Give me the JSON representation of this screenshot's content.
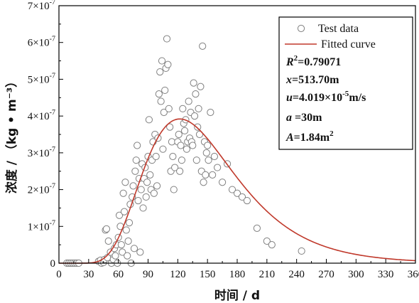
{
  "chart_data": {
    "type": "scatter",
    "xlabel": "时间 / d",
    "ylabel": "浓度 / （kg • m⁻³）",
    "xlim": [
      0,
      360
    ],
    "ylim": [
      0,
      7e-07
    ],
    "x_ticks": [
      0,
      30,
      60,
      90,
      120,
      150,
      180,
      210,
      240,
      270,
      300,
      330,
      360
    ],
    "y_ticks": [
      {
        "value": 0,
        "mantissa": "0",
        "exp": ""
      },
      {
        "value": 1e-07,
        "mantissa": "1×10",
        "exp": "-7"
      },
      {
        "value": 2e-07,
        "mantissa": "2×10",
        "exp": "-7"
      },
      {
        "value": 3e-07,
        "mantissa": "3×10",
        "exp": "-7"
      },
      {
        "value": 4e-07,
        "mantissa": "4×10",
        "exp": "-7"
      },
      {
        "value": 5e-07,
        "mantissa": "5×10",
        "exp": "-7"
      },
      {
        "value": 6e-07,
        "mantissa": "6×10",
        "exp": "-7"
      },
      {
        "value": 7e-07,
        "mantissa": "7×10",
        "exp": "-7"
      }
    ],
    "grid": false,
    "legend_position": "top-right",
    "colors": {
      "test_data": "#808080",
      "fitted_curve": "#c0392b",
      "axis": "#000000"
    },
    "series": [
      {
        "name": "Test data",
        "kind": "scatter",
        "points": [
          [
            8,
            0.0
          ],
          [
            10,
            0.0
          ],
          [
            12,
            0.0
          ],
          [
            14,
            0.0
          ],
          [
            16,
            0.0
          ],
          [
            18,
            0.0
          ],
          [
            20,
            0.0
          ],
          [
            40,
            0.05
          ],
          [
            42,
            0.08
          ],
          [
            43,
            0.0
          ],
          [
            45,
            0.02
          ],
          [
            46,
            0.1
          ],
          [
            47,
            0.9
          ],
          [
            48,
            0.93
          ],
          [
            49,
            0.15
          ],
          [
            50,
            0.6
          ],
          [
            52,
            0.3
          ],
          [
            53,
            0.0
          ],
          [
            55,
            0.1
          ],
          [
            56,
            0.4
          ],
          [
            57,
            0.2
          ],
          [
            58,
            0.5
          ],
          [
            59,
            0.0
          ],
          [
            60,
            0.7
          ],
          [
            61,
            1.3
          ],
          [
            62,
            1.0
          ],
          [
            63,
            0.5
          ],
          [
            64,
            0.3
          ],
          [
            65,
            1.9
          ],
          [
            66,
            1.4
          ],
          [
            67,
            2.2
          ],
          [
            68,
            0.9
          ],
          [
            69,
            0.2
          ],
          [
            70,
            0.6
          ],
          [
            71,
            1.1
          ],
          [
            72,
            1.6
          ],
          [
            73,
            0.0
          ],
          [
            74,
            1.8
          ],
          [
            75,
            2.1
          ],
          [
            76,
            0.4
          ],
          [
            77,
            2.5
          ],
          [
            78,
            2.8
          ],
          [
            79,
            3.2
          ],
          [
            80,
            1.7
          ],
          [
            81,
            2.3
          ],
          [
            82,
            0.3
          ],
          [
            83,
            2.0
          ],
          [
            84,
            2.7
          ],
          [
            85,
            1.5
          ],
          [
            86,
            2.3
          ],
          [
            87,
            2.6
          ],
          [
            88,
            1.8
          ],
          [
            89,
            2.2
          ],
          [
            90,
            2.9
          ],
          [
            91,
            3.9
          ],
          [
            92,
            2.4
          ],
          [
            93,
            2.0
          ],
          [
            94,
            2.8
          ],
          [
            95,
            3.3
          ],
          [
            96,
            1.9
          ],
          [
            97,
            3.5
          ],
          [
            98,
            2.9
          ],
          [
            99,
            2.1
          ],
          [
            100,
            3.4
          ],
          [
            101,
            4.6
          ],
          [
            102,
            5.2
          ],
          [
            103,
            4.4
          ],
          [
            104,
            5.5
          ],
          [
            105,
            3.1
          ],
          [
            106,
            4.1
          ],
          [
            107,
            4.7
          ],
          [
            108,
            5.3
          ],
          [
            109,
            6.1
          ],
          [
            110,
            5.4
          ],
          [
            111,
            4.2
          ],
          [
            112,
            3.7
          ],
          [
            113,
            2.5
          ],
          [
            114,
            3.3
          ],
          [
            115,
            2.9
          ],
          [
            116,
            2.0
          ],
          [
            117,
            2.6
          ],
          [
            120,
            3.3
          ],
          [
            121,
            3.5
          ],
          [
            122,
            2.5
          ],
          [
            123,
            3.2
          ],
          [
            124,
            2.8
          ],
          [
            125,
            4.2
          ],
          [
            126,
            3.8
          ],
          [
            127,
            3.6
          ],
          [
            128,
            3.9
          ],
          [
            129,
            3.1
          ],
          [
            130,
            3.3
          ],
          [
            131,
            4.4
          ],
          [
            132,
            3.4
          ],
          [
            133,
            4.1
          ],
          [
            134,
            3.3
          ],
          [
            135,
            3.2
          ],
          [
            136,
            4.9
          ],
          [
            137,
            4.0
          ],
          [
            138,
            4.6
          ],
          [
            139,
            2.8
          ],
          [
            140,
            3.7
          ],
          [
            141,
            4.2
          ],
          [
            142,
            3.5
          ],
          [
            143,
            4.8
          ],
          [
            144,
            2.5
          ],
          [
            145,
            5.9
          ],
          [
            146,
            2.2
          ],
          [
            147,
            3.3
          ],
          [
            148,
            2.4
          ],
          [
            149,
            3.0
          ],
          [
            150,
            3.2
          ],
          [
            151,
            2.8
          ],
          [
            153,
            4.1
          ],
          [
            155,
            2.4
          ],
          [
            157,
            2.9
          ],
          [
            160,
            2.6
          ],
          [
            165,
            2.2
          ],
          [
            170,
            2.7
          ],
          [
            175,
            2.0
          ],
          [
            180,
            1.9
          ],
          [
            185,
            1.8
          ],
          [
            190,
            1.7
          ],
          [
            200,
            0.95
          ],
          [
            210,
            0.6
          ],
          [
            215,
            0.5
          ],
          [
            245,
            0.33
          ]
        ],
        "unit_scale": 1e-07
      },
      {
        "name": "Fitted curve",
        "kind": "line",
        "model": {
          "R2": 0.79071,
          "x_m": 513.7,
          "u_m_per_s": 4.019e-05,
          "a_m": 30,
          "A_m2": 1.84
        },
        "peak": {
          "x": 122,
          "y": 3.92e-07
        }
      }
    ],
    "annotations": [
      {
        "key": "R2",
        "label_main": "R",
        "label_sup": "2",
        "value": "=0.79071"
      },
      {
        "key": "x",
        "label_main": "x",
        "label_sup": "",
        "value": "=513.70m"
      },
      {
        "key": "u",
        "label_main": "u",
        "label_sup": "",
        "value": "=4.019×10",
        "value_sup": "-5",
        "value_tail": "m/s"
      },
      {
        "key": "a",
        "label_main": "a",
        "label_sup": "",
        "value": " =30m"
      },
      {
        "key": "A",
        "label_main": "A",
        "label_sup": "",
        "value": "=1.84m",
        "value_sup": "2"
      }
    ],
    "legend": {
      "test_data_label": "Test data",
      "fitted_curve_label": "Fitted curve"
    }
  }
}
